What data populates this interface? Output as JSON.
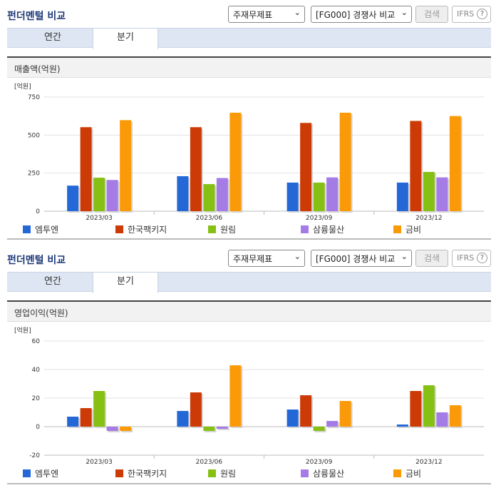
{
  "sections": [
    {
      "title": "펀더멘털 비교",
      "select1": "주재무제표",
      "select2": "[FG000] 경쟁사 비교",
      "search_label": "검색",
      "ifrs_label": "IFRS",
      "ifrs_help": "?",
      "tabs": [
        "연간",
        "분기"
      ],
      "active_tab": "분기",
      "metric_label": "매출액(억원)"
    },
    {
      "title": "펀더멘털 비교",
      "select1": "주재무제표",
      "select2": "[FG000] 경쟁사 비교",
      "search_label": "검색",
      "ifrs_label": "IFRS",
      "ifrs_help": "?",
      "tabs": [
        "연간",
        "분기"
      ],
      "active_tab": "분기",
      "metric_label": "영업이익(억원)"
    }
  ],
  "colors": {
    "series": [
      "#2468d8",
      "#cc3b06",
      "#86c014",
      "#a57be6",
      "#fb9a08"
    ],
    "title": "#1e3a78"
  },
  "chart_data": [
    {
      "type": "bar",
      "unit_label": "[억원]",
      "categories": [
        "2023/03",
        "2023/06",
        "2023/09",
        "2023/12"
      ],
      "ylim": [
        0,
        750
      ],
      "yticks": [
        0,
        250,
        500,
        750
      ],
      "grid": true,
      "legend_position": "bottom",
      "series": [
        {
          "name": "엠투엔",
          "values": [
            168,
            230,
            188,
            188
          ]
        },
        {
          "name": "한국팩키지",
          "values": [
            552,
            552,
            580,
            593
          ]
        },
        {
          "name": "원림",
          "values": [
            220,
            178,
            188,
            258
          ]
        },
        {
          "name": "삼륭물산",
          "values": [
            205,
            218,
            222,
            222
          ]
        },
        {
          "name": "금비",
          "values": [
            598,
            647,
            647,
            625
          ]
        }
      ]
    },
    {
      "type": "bar",
      "unit_label": "[억원]",
      "categories": [
        "2023/03",
        "2023/06",
        "2023/09",
        "2023/12"
      ],
      "ylim": [
        -20,
        60
      ],
      "yticks": [
        -20,
        0,
        20,
        40,
        60
      ],
      "grid": true,
      "legend_position": "bottom",
      "series": [
        {
          "name": "엠투엔",
          "values": [
            7,
            11,
            12,
            1.5
          ]
        },
        {
          "name": "한국팩키지",
          "values": [
            13,
            24,
            22,
            25
          ]
        },
        {
          "name": "원림",
          "values": [
            25,
            -3,
            -3,
            29
          ]
        },
        {
          "name": "삼륭물산",
          "values": [
            -3,
            -1.5,
            4,
            10
          ]
        },
        {
          "name": "금비",
          "values": [
            -3,
            43,
            18,
            15
          ]
        }
      ]
    }
  ]
}
